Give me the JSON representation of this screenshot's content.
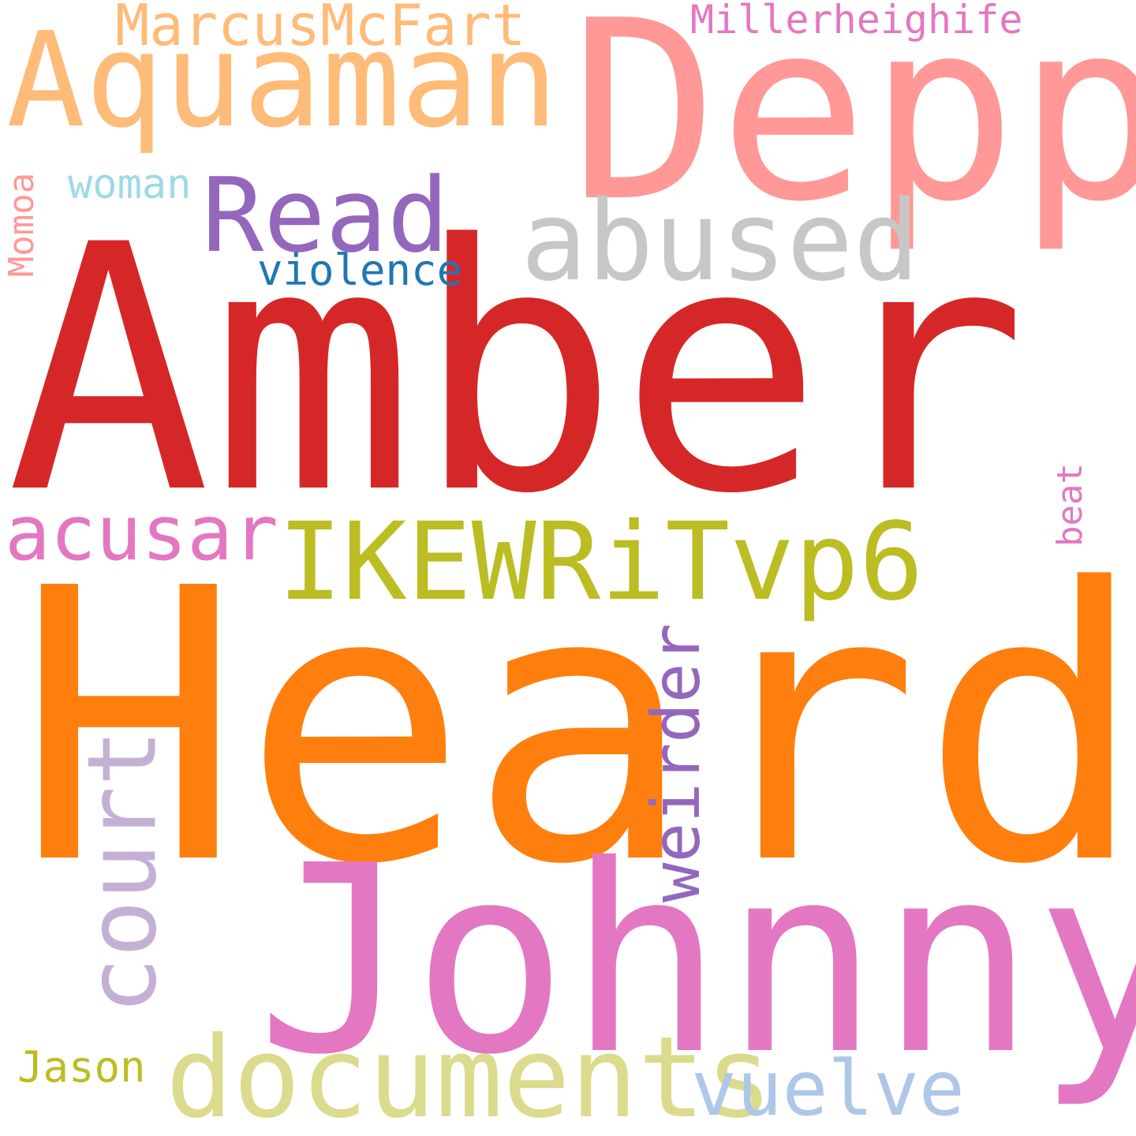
{
  "words": [
    {
      "id": "amber",
      "text": "Amber",
      "color": "#d62728"
    },
    {
      "id": "heard",
      "text": "Heard",
      "color": "#ff7f0e"
    },
    {
      "id": "johnny",
      "text": "Johnny",
      "color": "#e377c2"
    },
    {
      "id": "depp",
      "text": "Depp",
      "color": "#ff9896"
    },
    {
      "id": "aquaman",
      "text": "Aquaman",
      "color": "#ffbb78"
    },
    {
      "id": "ikewritvp6",
      "text": "IKEWRiTvp6",
      "color": "#bcbd22"
    },
    {
      "id": "abused",
      "text": "abused",
      "color": "#c7c7c7"
    },
    {
      "id": "read",
      "text": "Read",
      "color": "#9467bd"
    },
    {
      "id": "documents",
      "text": "documents",
      "color": "#dbdb8d"
    },
    {
      "id": "court",
      "text": "court",
      "color": "#c5b0d5"
    },
    {
      "id": "weirder",
      "text": "weirder",
      "color": "#9467bd"
    },
    {
      "id": "acusar",
      "text": "acusar",
      "color": "#e377c2"
    },
    {
      "id": "vuelve",
      "text": "vuelve",
      "color": "#aec7e8"
    },
    {
      "id": "marcusmcfart",
      "text": "MarcusMcFart",
      "color": "#ffbb78"
    },
    {
      "id": "millerheighife",
      "text": "Millerheighife",
      "color": "#e377c2"
    },
    {
      "id": "violence",
      "text": "violence",
      "color": "#1f77b4"
    },
    {
      "id": "woman",
      "text": "woman",
      "color": "#9edae5"
    },
    {
      "id": "momoa",
      "text": "Momoa",
      "color": "#ff9896"
    },
    {
      "id": "beat",
      "text": "beat",
      "color": "#e377c2"
    },
    {
      "id": "jason",
      "text": "Jason",
      "color": "#bcbd22"
    }
  ]
}
